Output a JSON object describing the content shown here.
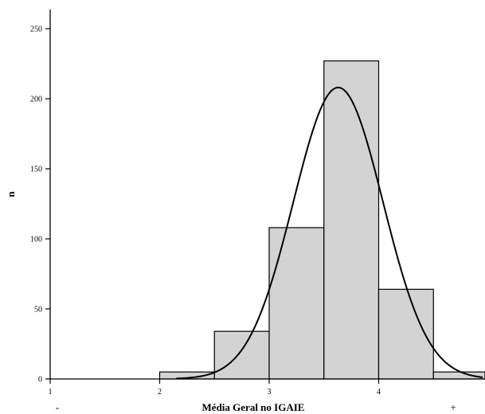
{
  "chart_data": {
    "type": "bar",
    "subtype": "histogram-with-density-curve",
    "title": "",
    "xlabel": "Média Geral no IGAIE",
    "ylabel": "n",
    "xlim": [
      1,
      5
    ],
    "ylim": [
      0,
      262
    ],
    "x_ticks": [
      1,
      2,
      3,
      4
    ],
    "y_ticks": [
      0,
      50,
      100,
      150,
      200,
      250
    ],
    "x_end_labels": {
      "left": "-",
      "right": "+"
    },
    "bins": [
      {
        "x0": 2.0,
        "x1": 2.5,
        "count": 5
      },
      {
        "x0": 2.5,
        "x1": 3.0,
        "count": 34
      },
      {
        "x0": 3.0,
        "x1": 3.5,
        "count": 108
      },
      {
        "x0": 3.5,
        "x1": 4.0,
        "count": 227
      },
      {
        "x0": 4.0,
        "x1": 4.5,
        "count": 64
      },
      {
        "x0": 4.5,
        "x1": 5.0,
        "count": 5
      }
    ],
    "curve": {
      "type": "normal",
      "mean": 3.63,
      "sd": 0.41,
      "peak": 208,
      "x_start": 2.15,
      "x_end": 4.95
    },
    "grid": false,
    "legend": "none",
    "colors": {
      "bar_fill": "#d3d3d3",
      "bar_stroke": "#000000",
      "curve": "#000000"
    }
  }
}
